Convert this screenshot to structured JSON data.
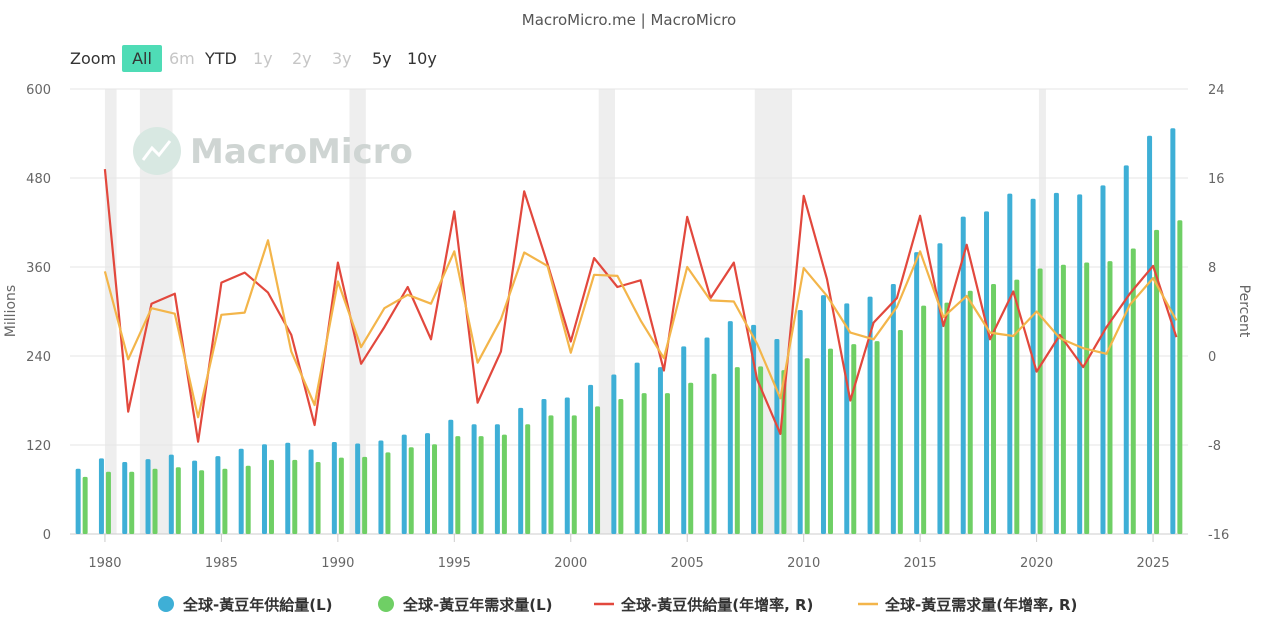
{
  "source": "MacroMicro.me | MacroMicro",
  "watermark": "MacroMicro",
  "zoom": {
    "label": "Zoom",
    "buttons": [
      {
        "label": "All",
        "state": "active"
      },
      {
        "label": "6m",
        "state": "disabled"
      },
      {
        "label": "YTD",
        "state": "normal"
      },
      {
        "label": "1y",
        "state": "disabled"
      },
      {
        "label": "2y",
        "state": "disabled"
      },
      {
        "label": "3y",
        "state": "disabled"
      },
      {
        "label": "5y",
        "state": "normal"
      },
      {
        "label": "10y",
        "state": "normal"
      }
    ],
    "active_color": "#4fdcb6"
  },
  "chart_data": {
    "type": "bar+line",
    "title": "",
    "ylabel_left": "Millions",
    "ylabel_right": "Percent",
    "ylim_left": [
      0,
      600
    ],
    "ylim_right": [
      -16,
      24
    ],
    "yticks_left": [
      "0",
      "120",
      "240",
      "360",
      "480",
      "600"
    ],
    "yticks_right": [
      "-16",
      "-8",
      "0",
      "8",
      "16",
      "24"
    ],
    "xlim": [
      1978.5,
      2026.5
    ],
    "xticks": [
      "1980",
      "1985",
      "1990",
      "1995",
      "2000",
      "2005",
      "2010",
      "2015",
      "2020",
      "2025"
    ],
    "grid": true,
    "legend_position": "bottom",
    "recession_bands": [
      [
        1980.0,
        1980.5
      ],
      [
        1981.5,
        1982.9
      ],
      [
        1990.5,
        1991.2
      ],
      [
        2001.2,
        2001.9
      ],
      [
        2007.9,
        2009.5
      ],
      [
        2020.1,
        2020.4
      ]
    ],
    "years": [
      1979,
      1980,
      1981,
      1982,
      1983,
      1984,
      1985,
      1986,
      1987,
      1988,
      1989,
      1990,
      1991,
      1992,
      1993,
      1994,
      1995,
      1996,
      1997,
      1998,
      1999,
      2000,
      2001,
      2002,
      2003,
      2004,
      2005,
      2006,
      2007,
      2008,
      2009,
      2010,
      2011,
      2012,
      2013,
      2014,
      2015,
      2016,
      2017,
      2018,
      2019,
      2020,
      2021,
      2022,
      2023,
      2024,
      2025,
      2026
    ],
    "series": [
      {
        "name": "全球-黃豆年供給量(L)",
        "kind": "bar",
        "axis": "left",
        "color": "#3eafd6",
        "values": [
          88,
          102,
          97,
          101,
          107,
          99,
          105,
          115,
          121,
          123,
          114,
          124,
          122,
          126,
          134,
          136,
          154,
          148,
          148,
          170,
          182,
          184,
          201,
          215,
          231,
          225,
          253,
          265,
          287,
          282,
          263,
          302,
          322,
          311,
          320,
          337,
          380,
          392,
          428,
          435,
          459,
          452,
          460,
          458,
          470,
          497,
          537,
          547
        ]
      },
      {
        "name": "全球-黃豆年需求量(L)",
        "kind": "bar",
        "axis": "left",
        "color": "#6fcf65",
        "values": [
          77,
          84,
          84,
          88,
          90,
          86,
          88,
          92,
          100,
          100,
          97,
          103,
          104,
          110,
          117,
          121,
          132,
          132,
          134,
          148,
          160,
          160,
          172,
          182,
          190,
          190,
          204,
          216,
          225,
          226,
          221,
          237,
          250,
          256,
          260,
          275,
          308,
          312,
          328,
          337,
          343,
          358,
          363,
          366,
          368,
          385,
          410,
          423
        ]
      },
      {
        "name": "全球-黃豆供給量(年增率, R)",
        "kind": "line",
        "axis": "right",
        "color": "#e2483d",
        "values": [
          null,
          16.8,
          -5,
          4.7,
          5.6,
          -7.7,
          6.6,
          7.5,
          5.7,
          1.9,
          -6.2,
          8.4,
          -0.7,
          2.6,
          6.2,
          1.5,
          13.0,
          -4.2,
          0.4,
          14.8,
          8.3,
          1.3,
          8.8,
          6.2,
          6.8,
          -1.3,
          12.5,
          5.2,
          8.4,
          -2.1,
          -7.0,
          14.4,
          6.9,
          -4.0,
          3.0,
          5.2,
          12.6,
          2.7,
          10.0,
          1.5,
          5.8,
          -1.4,
          1.9,
          -1.0,
          2.6,
          5.6,
          8.1,
          1.7
        ]
      },
      {
        "name": "全球-黃豆需求量(年增率, R)",
        "kind": "line",
        "axis": "right",
        "color": "#f3b54a",
        "values": [
          null,
          7.6,
          -0.3,
          4.3,
          3.8,
          -5.5,
          3.7,
          3.9,
          10.4,
          0.4,
          -4.4,
          6.7,
          0.8,
          4.3,
          5.5,
          4.7,
          9.4,
          -0.6,
          3.3,
          9.3,
          8.1,
          0.3,
          7.3,
          7.2,
          3.2,
          -0.2,
          8.0,
          5.0,
          4.9,
          1.1,
          -3.8,
          7.9,
          5.4,
          2.1,
          1.5,
          4.4,
          9.4,
          3.5,
          5.4,
          2.1,
          1.8,
          4.0,
          1.6,
          0.7,
          0.2,
          4.6,
          7.0,
          3.2
        ]
      }
    ]
  }
}
